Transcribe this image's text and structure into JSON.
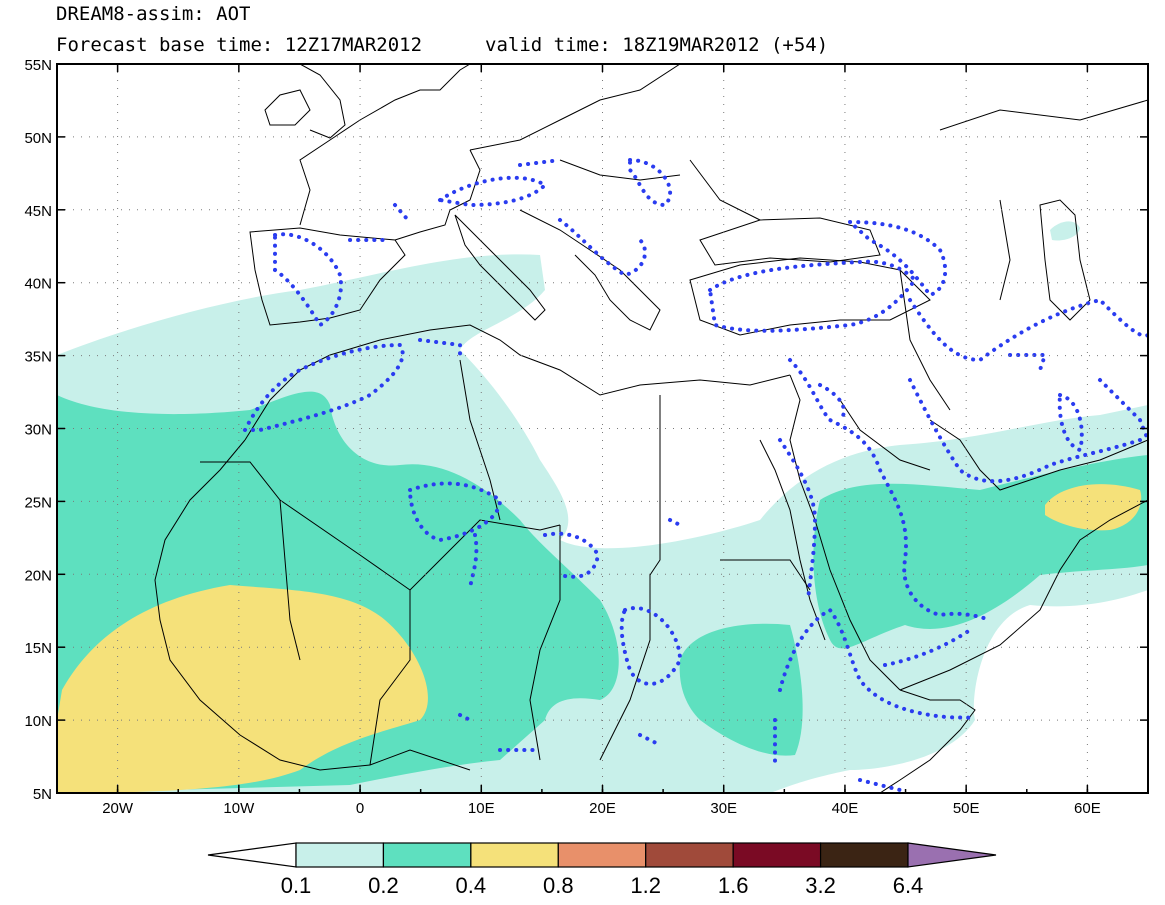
{
  "title": {
    "model": "DREAM8-assim: AOT",
    "base_time": "Forecast base time: 12Z17MAR2012",
    "valid_time": "valid time: 18Z19MAR2012 (+54)"
  },
  "map": {
    "lat_labels": [
      "55N",
      "50N",
      "45N",
      "40N",
      "35N",
      "30N",
      "25N",
      "20N",
      "15N",
      "10N",
      "5N"
    ],
    "lon_labels": [
      "20W",
      "10W",
      "0",
      "10E",
      "20E",
      "30E",
      "40E",
      "50E",
      "60E"
    ],
    "lat_range": [
      5,
      55
    ],
    "lon_range": [
      -25,
      65
    ],
    "grid": "dotted"
  },
  "colorbar": {
    "labels": [
      "0.1",
      "0.2",
      "0.4",
      "0.8",
      "1.2",
      "1.6",
      "3.2",
      "6.4"
    ],
    "colors": [
      "#ffffff",
      "#c8f0ea",
      "#5ee0bf",
      "#f5e17a",
      "#e8906a",
      "#a04a3a",
      "#7a0a24",
      "#3b2414",
      "#9a70b0"
    ]
  },
  "shading_colors": {
    "light": "#c8f0ea",
    "medium": "#5ee0bf",
    "high": "#f5e17a",
    "contour": "#2a3cf0"
  }
}
